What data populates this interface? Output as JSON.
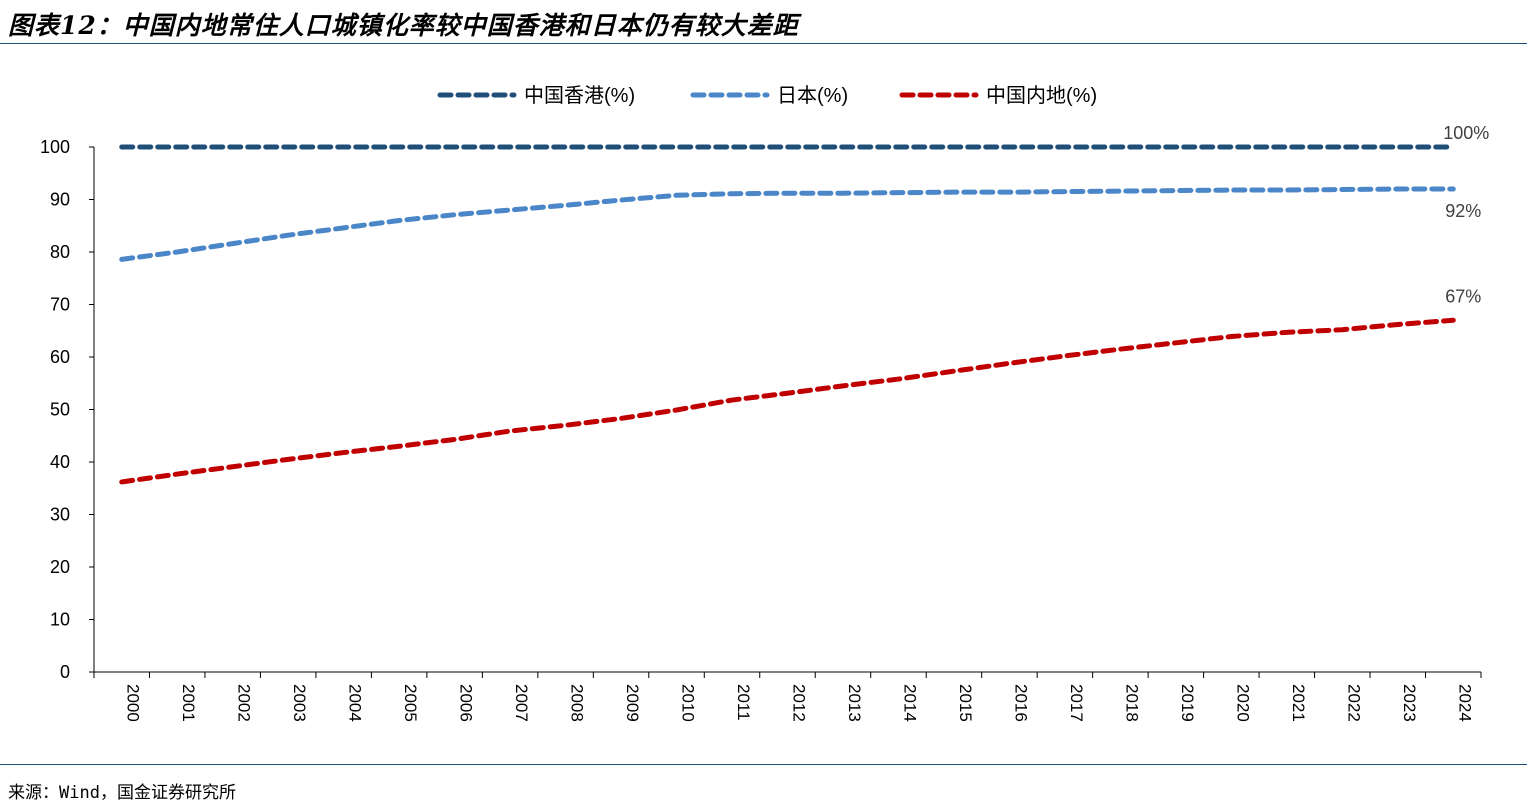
{
  "title": "图表12：中国内地常住人口城镇化率较中国香港和日本仍有较大差距",
  "source": "来源：Wind，国金证券研究所",
  "chart_data": {
    "type": "line",
    "x": [
      "2000",
      "2001",
      "2002",
      "2003",
      "2004",
      "2005",
      "2006",
      "2007",
      "2008",
      "2009",
      "2010",
      "2011",
      "2012",
      "2013",
      "2014",
      "2015",
      "2016",
      "2017",
      "2018",
      "2019",
      "2020",
      "2021",
      "2022",
      "2023",
      "2024"
    ],
    "ylim": [
      0,
      100
    ],
    "yticks": [
      "0",
      "10",
      "20",
      "30",
      "40",
      "50",
      "60",
      "70",
      "80",
      "90",
      "100"
    ],
    "legend_position": "top",
    "grid": false,
    "series": [
      {
        "name": "中国香港(%)",
        "color": "#1f4e79",
        "end_label": "100%",
        "values": [
          100,
          100,
          100,
          100,
          100,
          100,
          100,
          100,
          100,
          100,
          100,
          100,
          100,
          100,
          100,
          100,
          100,
          100,
          100,
          100,
          100,
          100,
          100,
          100,
          100
        ]
      },
      {
        "name": "日本(%)",
        "color": "#4a86c8",
        "end_label": "92%",
        "values": [
          78.6,
          80.0,
          81.6,
          83.2,
          84.6,
          86.0,
          87.1,
          88.0,
          88.9,
          89.9,
          90.8,
          91.1,
          91.2,
          91.2,
          91.3,
          91.4,
          91.4,
          91.5,
          91.6,
          91.7,
          91.8,
          91.8,
          91.9,
          92.0,
          92.0
        ]
      },
      {
        "name": "中国内地(%)",
        "color": "#c00000",
        "end_label": "67%",
        "values": [
          36.2,
          37.7,
          39.1,
          40.5,
          41.8,
          43.0,
          44.3,
          45.9,
          47.0,
          48.3,
          49.9,
          51.8,
          53.1,
          54.5,
          55.8,
          57.3,
          58.8,
          60.2,
          61.5,
          62.7,
          63.9,
          64.7,
          65.2,
          66.2,
          67.0
        ]
      }
    ]
  }
}
